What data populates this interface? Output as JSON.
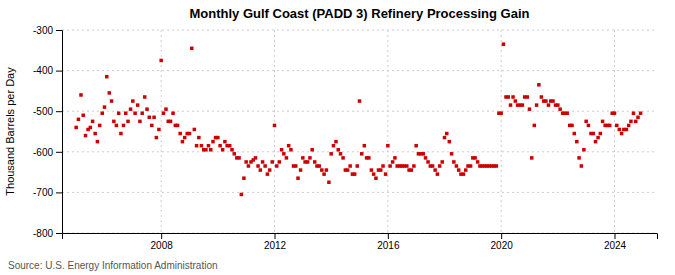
{
  "chart_data": {
    "type": "scatter",
    "title": "Monthly Gulf Coast (PADD 3) Refinery Processing Gain",
    "ylabel": "Thousand Barrels per Day",
    "source": "Source: U.S. Energy Information Administration",
    "color": "#cc0000",
    "marker": "square",
    "grid": true,
    "xlim": [
      2004.5,
      2025.5
    ],
    "xticks": [
      2008,
      2012,
      2016,
      2020,
      2024
    ],
    "ylim": [
      -800,
      -300
    ],
    "yticks": [
      -800,
      -700,
      -600,
      -500,
      -400,
      -300
    ],
    "x": [
      2005.0,
      2005.08,
      2005.17,
      2005.25,
      2005.33,
      2005.42,
      2005.5,
      2005.58,
      2005.67,
      2005.75,
      2005.83,
      2005.92,
      2006.0,
      2006.08,
      2006.17,
      2006.25,
      2006.33,
      2006.42,
      2006.5,
      2006.58,
      2006.67,
      2006.75,
      2006.83,
      2006.92,
      2007.0,
      2007.08,
      2007.17,
      2007.25,
      2007.33,
      2007.42,
      2007.5,
      2007.58,
      2007.67,
      2007.75,
      2007.83,
      2007.92,
      2008.0,
      2008.08,
      2008.17,
      2008.25,
      2008.33,
      2008.42,
      2008.5,
      2008.58,
      2008.67,
      2008.75,
      2008.83,
      2008.92,
      2009.0,
      2009.08,
      2009.17,
      2009.25,
      2009.33,
      2009.42,
      2009.5,
      2009.58,
      2009.67,
      2009.75,
      2009.83,
      2009.92,
      2010.0,
      2010.08,
      2010.17,
      2010.25,
      2010.33,
      2010.42,
      2010.5,
      2010.58,
      2010.67,
      2010.75,
      2010.83,
      2010.92,
      2011.0,
      2011.08,
      2011.17,
      2011.25,
      2011.33,
      2011.42,
      2011.5,
      2011.58,
      2011.67,
      2011.75,
      2011.83,
      2011.92,
      2012.0,
      2012.08,
      2012.17,
      2012.25,
      2012.33,
      2012.42,
      2012.5,
      2012.58,
      2012.67,
      2012.75,
      2012.83,
      2012.92,
      2013.0,
      2013.08,
      2013.17,
      2013.25,
      2013.33,
      2013.42,
      2013.5,
      2013.58,
      2013.67,
      2013.75,
      2013.83,
      2013.92,
      2014.0,
      2014.08,
      2014.17,
      2014.25,
      2014.33,
      2014.42,
      2014.5,
      2014.58,
      2014.67,
      2014.75,
      2014.83,
      2014.92,
      2015.0,
      2015.08,
      2015.17,
      2015.25,
      2015.33,
      2015.42,
      2015.5,
      2015.58,
      2015.67,
      2015.75,
      2015.83,
      2015.92,
      2016.0,
      2016.08,
      2016.17,
      2016.25,
      2016.33,
      2016.42,
      2016.5,
      2016.58,
      2016.67,
      2016.75,
      2016.83,
      2016.92,
      2017.0,
      2017.08,
      2017.17,
      2017.25,
      2017.33,
      2017.42,
      2017.5,
      2017.58,
      2017.67,
      2017.75,
      2017.83,
      2017.92,
      2018.0,
      2018.08,
      2018.17,
      2018.25,
      2018.33,
      2018.42,
      2018.5,
      2018.58,
      2018.67,
      2018.75,
      2018.83,
      2018.92,
      2019.0,
      2019.08,
      2019.17,
      2019.25,
      2019.33,
      2019.42,
      2019.5,
      2019.58,
      2019.67,
      2019.75,
      2019.83,
      2019.92,
      2020.0,
      2020.08,
      2020.17,
      2020.25,
      2020.33,
      2020.42,
      2020.5,
      2020.58,
      2020.67,
      2020.75,
      2020.83,
      2020.92,
      2021.0,
      2021.08,
      2021.17,
      2021.25,
      2021.33,
      2021.42,
      2021.5,
      2021.58,
      2021.67,
      2021.75,
      2021.83,
      2021.92,
      2022.0,
      2022.08,
      2022.17,
      2022.25,
      2022.33,
      2022.42,
      2022.5,
      2022.58,
      2022.67,
      2022.75,
      2022.83,
      2022.92,
      2023.0,
      2023.08,
      2023.17,
      2023.25,
      2023.33,
      2023.42,
      2023.5,
      2023.58,
      2023.67,
      2023.75,
      2023.83,
      2023.92,
      2024.0,
      2024.08,
      2024.17,
      2024.25,
      2024.33,
      2024.42,
      2024.5,
      2024.58,
      2024.67,
      2024.75,
      2024.83,
      2024.92
    ],
    "values": [
      -540,
      -520,
      -460,
      -510,
      -560,
      -545,
      -540,
      -525,
      -555,
      -575,
      -535,
      -505,
      -490,
      -415,
      -455,
      -475,
      -525,
      -535,
      -505,
      -555,
      -535,
      -505,
      -525,
      -495,
      -475,
      -505,
      -485,
      -525,
      -505,
      -465,
      -495,
      -515,
      -535,
      -515,
      -565,
      -545,
      -375,
      -505,
      -495,
      -525,
      -525,
      -505,
      -535,
      -535,
      -555,
      -575,
      -565,
      -555,
      -555,
      -345,
      -545,
      -585,
      -565,
      -585,
      -595,
      -595,
      -585,
      -595,
      -575,
      -565,
      -565,
      -585,
      -595,
      -575,
      -585,
      -585,
      -595,
      -605,
      -615,
      -615,
      -705,
      -665,
      -625,
      -635,
      -625,
      -620,
      -615,
      -635,
      -645,
      -625,
      -635,
      -655,
      -645,
      -625,
      -535,
      -635,
      -625,
      -595,
      -605,
      -615,
      -585,
      -595,
      -635,
      -635,
      -665,
      -645,
      -615,
      -625,
      -625,
      -615,
      -595,
      -625,
      -635,
      -635,
      -645,
      -655,
      -645,
      -675,
      -605,
      -585,
      -575,
      -595,
      -605,
      -615,
      -645,
      -645,
      -635,
      -655,
      -655,
      -635,
      -475,
      -605,
      -585,
      -615,
      -615,
      -645,
      -655,
      -665,
      -645,
      -645,
      -635,
      -655,
      -585,
      -635,
      -625,
      -615,
      -635,
      -635,
      -635,
      -635,
      -635,
      -645,
      -645,
      -635,
      -585,
      -605,
      -605,
      -605,
      -615,
      -625,
      -635,
      -635,
      -645,
      -655,
      -635,
      -625,
      -565,
      -555,
      -575,
      -605,
      -625,
      -635,
      -645,
      -655,
      -655,
      -645,
      -635,
      -635,
      -615,
      -615,
      -625,
      -635,
      -635,
      -635,
      -635,
      -635,
      -635,
      -635,
      -635,
      -505,
      -505,
      -335,
      -465,
      -465,
      -485,
      -465,
      -475,
      -485,
      -485,
      -485,
      -465,
      -465,
      -495,
      -615,
      -535,
      -485,
      -435,
      -465,
      -475,
      -475,
      -485,
      -475,
      -475,
      -485,
      -485,
      -495,
      -505,
      -505,
      -505,
      -535,
      -535,
      -555,
      -575,
      -615,
      -635,
      -595,
      -525,
      -535,
      -555,
      -555,
      -575,
      -565,
      -555,
      -525,
      -535,
      -535,
      -535,
      -505,
      -505,
      -535,
      -545,
      -555,
      -545,
      -545,
      -535,
      -525,
      -505,
      -525,
      -515,
      -505
    ]
  }
}
